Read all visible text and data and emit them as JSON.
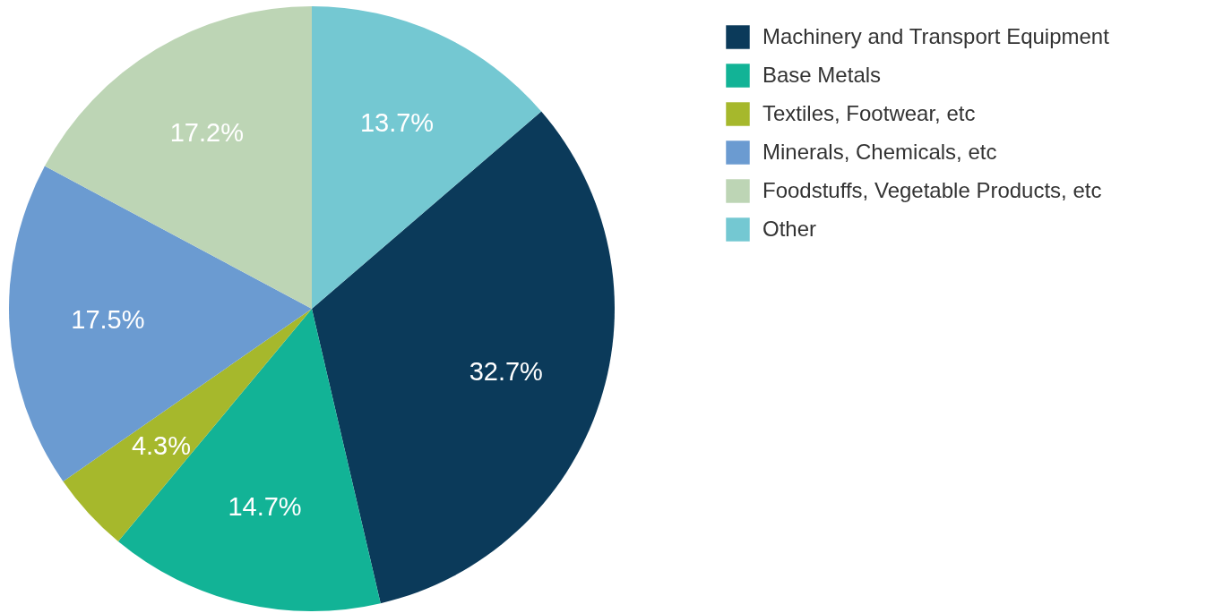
{
  "chart_data": {
    "type": "pie",
    "categories": [
      "Machinery and Transport Equipment",
      "Base Metals",
      "Textiles, Footwear, etc",
      "Minerals, Chemicals, etc",
      "Foodstuffs, Vegetable Products, etc",
      "Other"
    ],
    "values": [
      32.7,
      14.7,
      4.3,
      17.5,
      17.2,
      13.7
    ],
    "colors": [
      "#0b3a5a",
      "#12b396",
      "#a6b82c",
      "#6b9bd1",
      "#bdd5b5",
      "#74c8d2"
    ],
    "value_labels": [
      "32.7%",
      "14.7%",
      "4.3%",
      "17.5%",
      "17.2%",
      "13.7%"
    ],
    "legend": "right"
  }
}
